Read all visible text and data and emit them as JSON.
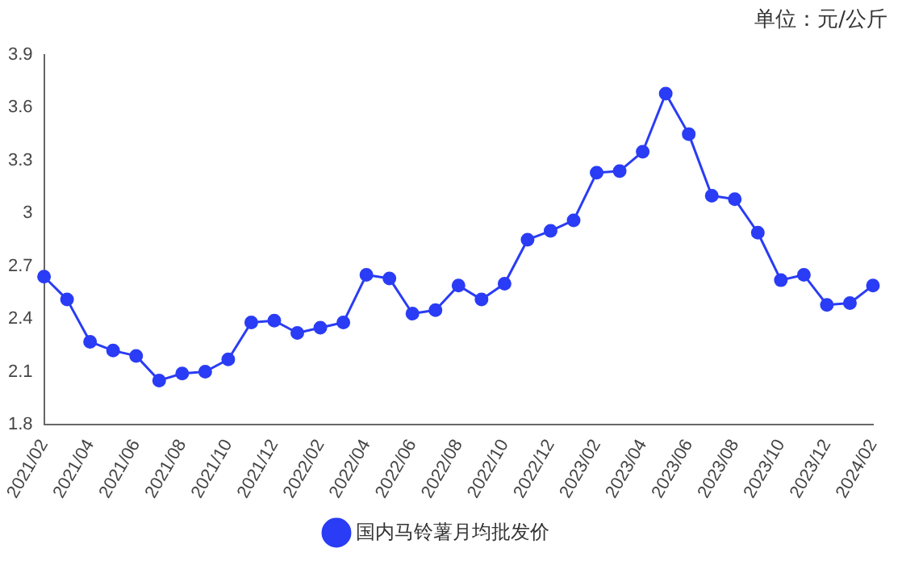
{
  "chart_data": {
    "type": "line",
    "annotations": [
      "单位：元/公斤"
    ],
    "categories": [
      "2021/02",
      null,
      "2021/04",
      null,
      "2021/06",
      null,
      "2021/08",
      null,
      "2021/10",
      null,
      "2021/12",
      null,
      "2022/02",
      null,
      "2022/04",
      null,
      "2022/06",
      null,
      "2022/08",
      null,
      "2022/10",
      null,
      "2022/12",
      null,
      "2023/02",
      null,
      "2023/04",
      null,
      "2023/06",
      null,
      "2023/08",
      null,
      "2023/10",
      null,
      "2023/12",
      null,
      "2024/02"
    ],
    "series": [
      {
        "name": "国内马铃薯月均批发价",
        "color": "#2a3cf5",
        "values": [
          2.64,
          2.51,
          2.27,
          2.22,
          2.19,
          2.05,
          2.09,
          2.1,
          2.17,
          2.38,
          2.39,
          2.32,
          2.35,
          2.38,
          2.65,
          2.63,
          2.43,
          2.45,
          2.59,
          2.51,
          2.6,
          2.85,
          2.9,
          2.96,
          3.23,
          3.24,
          3.35,
          3.68,
          3.45,
          3.1,
          3.08,
          2.89,
          2.62,
          2.65,
          2.48,
          2.49,
          2.59
        ]
      }
    ],
    "ylim": [
      1.8,
      3.9
    ],
    "yticks": [
      1.8,
      2.1,
      2.4,
      2.7,
      3,
      3.3,
      3.6,
      3.9
    ],
    "grid": false,
    "legend": "bottom",
    "marker": "circle",
    "line_style": "solid"
  }
}
